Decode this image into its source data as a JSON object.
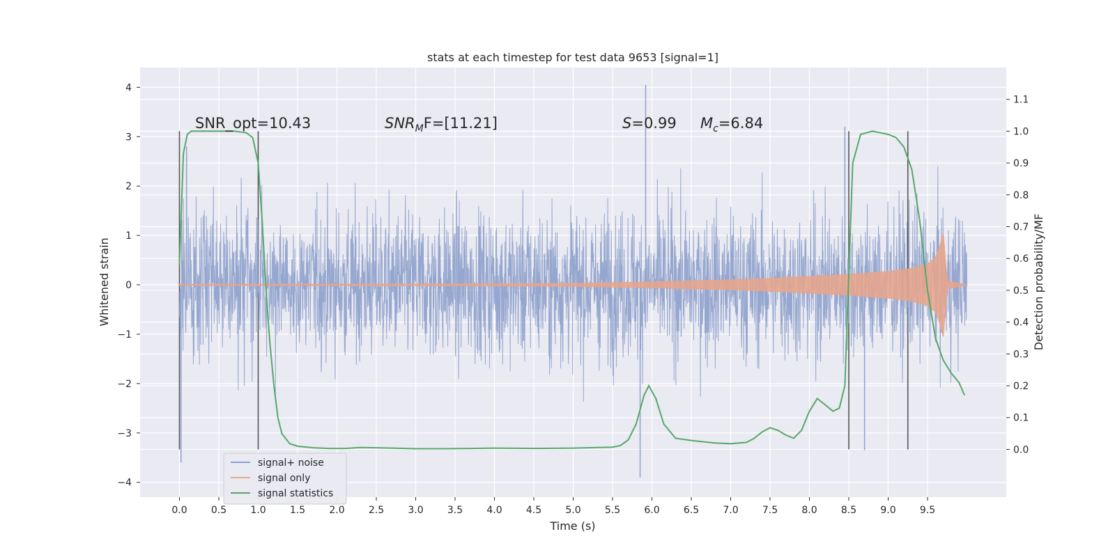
{
  "chart_data": {
    "type": "line",
    "title": "stats at each timestep for test data 9653 [signal=1]",
    "xlabel": "Time (s)",
    "ylabel": "Whitened strain",
    "y2label": "Detection probability/MF",
    "xlim": [
      -0.5,
      10.5
    ],
    "ylim": [
      -4.3,
      4.4
    ],
    "y2lim": [
      -0.15,
      1.2
    ],
    "xticks": [
      "0.0",
      "0.5",
      "1.0",
      "1.5",
      "2.0",
      "2.5",
      "3.0",
      "3.5",
      "4.0",
      "4.5",
      "5.0",
      "5.5",
      "6.0",
      "6.5",
      "7.0",
      "7.5",
      "8.0",
      "8.5",
      "9.0",
      "9.5"
    ],
    "yticks": [
      -4,
      -3,
      -2,
      -1,
      0,
      1,
      2,
      3,
      4
    ],
    "y2ticks": [
      "0.0",
      "0.1",
      "0.2",
      "0.3",
      "0.4",
      "0.5",
      "0.6",
      "0.7",
      "0.8",
      "0.9",
      "1.0",
      "1.1"
    ],
    "grid": true,
    "legend_placement": "lower-left",
    "annotations": {
      "snr_opt": "SNR_opt=10.43",
      "snr_mf_main": "SNR",
      "snr_mf_sub": "M",
      "snr_mf_rest": "F=[11.21]",
      "s_italic": "S",
      "s_value": "=0.99",
      "mc_italic": "M",
      "mc_sub": "c",
      "mc_value": "=6.84"
    },
    "vertical_markers": [
      0.0,
      1.0,
      8.5,
      9.25
    ],
    "series": [
      {
        "name": "signal+ noise",
        "color": "#8da0cb",
        "time_range": [
          0.0,
          10.0
        ],
        "band_core": [
          -1.2,
          1.3
        ],
        "extreme_points": [
          {
            "x": 0.02,
            "y": -3.6
          },
          {
            "x": 0.09,
            "y": 2.8
          },
          {
            "x": 5.85,
            "y": -3.9
          },
          {
            "x": 5.92,
            "y": 4.05
          },
          {
            "x": 8.45,
            "y": 3.2
          },
          {
            "x": 8.7,
            "y": -3.35
          }
        ]
      },
      {
        "name": "signal only",
        "color": "#e9a48a",
        "x": [
          0,
          2,
          4,
          5,
          6,
          7,
          7.5,
          8,
          8.5,
          9,
          9.3,
          9.5,
          9.6,
          9.65,
          9.7,
          9.75,
          10
        ],
        "amplitude": [
          0.01,
          0.012,
          0.02,
          0.03,
          0.06,
          0.1,
          0.13,
          0.17,
          0.21,
          0.27,
          0.33,
          0.42,
          0.55,
          0.75,
          1.05,
          0.08,
          0.0
        ]
      },
      {
        "name": "signal statistics",
        "color": "#55a868",
        "axis": "right",
        "x": [
          0.0,
          0.05,
          0.1,
          0.15,
          0.2,
          0.3,
          0.5,
          0.7,
          0.85,
          0.93,
          1.0,
          1.05,
          1.1,
          1.15,
          1.2,
          1.25,
          1.3,
          1.4,
          1.5,
          1.7,
          1.9,
          2.1,
          2.3,
          2.5,
          2.7,
          3.0,
          3.3,
          3.7,
          4.0,
          4.5,
          5.0,
          5.5,
          5.6,
          5.7,
          5.8,
          5.9,
          5.96,
          6.05,
          6.15,
          6.3,
          6.5,
          6.8,
          7.0,
          7.2,
          7.3,
          7.4,
          7.5,
          7.6,
          7.7,
          7.8,
          7.9,
          8.0,
          8.1,
          8.2,
          8.3,
          8.38,
          8.45,
          8.5,
          8.55,
          8.65,
          8.8,
          9.0,
          9.1,
          9.2,
          9.3,
          9.4,
          9.5,
          9.6,
          9.7,
          9.8,
          9.9,
          9.97
        ],
        "y": [
          0.58,
          0.93,
          0.99,
          1.0,
          1.0,
          1.0,
          1.0,
          1.0,
          0.995,
          0.98,
          0.9,
          0.72,
          0.5,
          0.33,
          0.2,
          0.1,
          0.05,
          0.018,
          0.01,
          0.005,
          0.003,
          0.003,
          0.006,
          0.005,
          0.004,
          0.002,
          0.002,
          0.003,
          0.004,
          0.003,
          0.004,
          0.007,
          0.012,
          0.03,
          0.08,
          0.17,
          0.2,
          0.16,
          0.08,
          0.035,
          0.028,
          0.02,
          0.018,
          0.022,
          0.035,
          0.055,
          0.068,
          0.06,
          0.045,
          0.035,
          0.06,
          0.12,
          0.16,
          0.14,
          0.12,
          0.13,
          0.2,
          0.55,
          0.9,
          0.99,
          1.0,
          0.99,
          0.98,
          0.95,
          0.88,
          0.72,
          0.5,
          0.35,
          0.28,
          0.24,
          0.21,
          0.17
        ]
      }
    ]
  }
}
